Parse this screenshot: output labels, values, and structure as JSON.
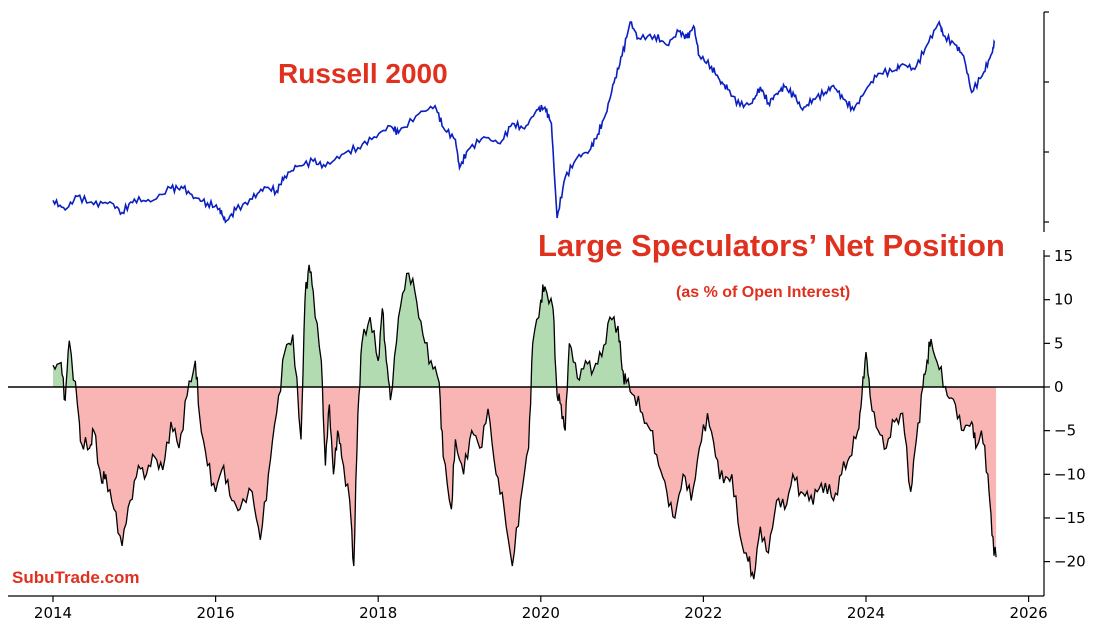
{
  "chart_data": [
    {
      "type": "line",
      "title": "Russell 2000",
      "x_unit": "year",
      "y_tick_labels": [],
      "xlim": [
        2014,
        2026
      ],
      "color": "#0a1fbf",
      "series": [
        {
          "values": [
            [
              2014.0,
              0.13
            ],
            [
              2014.15,
              0.06
            ],
            [
              2014.3,
              0.16
            ],
            [
              2014.5,
              0.1
            ],
            [
              2014.7,
              0.12
            ],
            [
              2014.85,
              0.04
            ],
            [
              2015.0,
              0.14
            ],
            [
              2015.2,
              0.12
            ],
            [
              2015.45,
              0.22
            ],
            [
              2015.6,
              0.22
            ],
            [
              2015.75,
              0.15
            ],
            [
              2015.9,
              0.11
            ],
            [
              2016.05,
              0.07
            ],
            [
              2016.12,
              -0.03
            ],
            [
              2016.25,
              0.06
            ],
            [
              2016.45,
              0.14
            ],
            [
              2016.6,
              0.23
            ],
            [
              2016.75,
              0.2
            ],
            [
              2016.85,
              0.31
            ],
            [
              2017.0,
              0.38
            ],
            [
              2017.2,
              0.42
            ],
            [
              2017.35,
              0.38
            ],
            [
              2017.55,
              0.47
            ],
            [
              2017.75,
              0.52
            ],
            [
              2017.95,
              0.6
            ],
            [
              2018.15,
              0.68
            ],
            [
              2018.25,
              0.63
            ],
            [
              2018.5,
              0.77
            ],
            [
              2018.7,
              0.83
            ],
            [
              2018.8,
              0.67
            ],
            [
              2018.95,
              0.58
            ],
            [
              2019.0,
              0.37
            ],
            [
              2019.1,
              0.5
            ],
            [
              2019.3,
              0.6
            ],
            [
              2019.5,
              0.55
            ],
            [
              2019.65,
              0.7
            ],
            [
              2019.8,
              0.66
            ],
            [
              2019.95,
              0.8
            ],
            [
              2020.05,
              0.82
            ],
            [
              2020.13,
              0.7
            ],
            [
              2020.2,
              0.0
            ],
            [
              2020.3,
              0.3
            ],
            [
              2020.45,
              0.45
            ],
            [
              2020.6,
              0.5
            ],
            [
              2020.7,
              0.62
            ],
            [
              2020.8,
              0.77
            ],
            [
              2020.9,
              1.0
            ],
            [
              2021.0,
              1.2
            ],
            [
              2021.1,
              1.45
            ],
            [
              2021.2,
              1.33
            ],
            [
              2021.4,
              1.35
            ],
            [
              2021.55,
              1.28
            ],
            [
              2021.7,
              1.38
            ],
            [
              2021.8,
              1.33
            ],
            [
              2021.88,
              1.42
            ],
            [
              2021.95,
              1.2
            ],
            [
              2022.1,
              1.12
            ],
            [
              2022.2,
              1.02
            ],
            [
              2022.3,
              0.95
            ],
            [
              2022.45,
              0.83
            ],
            [
              2022.6,
              0.85
            ],
            [
              2022.7,
              0.97
            ],
            [
              2022.8,
              0.85
            ],
            [
              2022.9,
              0.92
            ],
            [
              2023.0,
              0.97
            ],
            [
              2023.12,
              0.9
            ],
            [
              2023.22,
              0.8
            ],
            [
              2023.35,
              0.88
            ],
            [
              2023.5,
              0.93
            ],
            [
              2023.6,
              0.98
            ],
            [
              2023.72,
              0.88
            ],
            [
              2023.85,
              0.8
            ],
            [
              2024.0,
              0.95
            ],
            [
              2024.15,
              1.07
            ],
            [
              2024.35,
              1.09
            ],
            [
              2024.45,
              1.14
            ],
            [
              2024.6,
              1.1
            ],
            [
              2024.75,
              1.28
            ],
            [
              2024.9,
              1.45
            ],
            [
              2024.95,
              1.35
            ],
            [
              2025.1,
              1.28
            ],
            [
              2025.2,
              1.2
            ],
            [
              2025.3,
              0.93
            ],
            [
              2025.45,
              1.08
            ],
            [
              2025.55,
              1.22
            ],
            [
              2025.58,
              1.3
            ]
          ]
        }
      ]
    },
    {
      "type": "area",
      "title": "Large Speculators’ Net Position",
      "subtitle": "(as % of Open Interest)",
      "x_tick_labels": [
        "2014",
        "2016",
        "2018",
        "2020",
        "2022",
        "2024",
        "2026"
      ],
      "x_ticks": [
        2014,
        2016,
        2018,
        2020,
        2022,
        2024,
        2026
      ],
      "xlim": [
        2014,
        2026
      ],
      "y_ticks": [
        15,
        10,
        5,
        0,
        -5,
        -10,
        -15,
        -20
      ],
      "y_tick_labels": [
        "15",
        "10",
        "5",
        "0",
        "−5",
        "−10",
        "−15",
        "−20"
      ],
      "ylim": [
        -23.5,
        16
      ],
      "baseline": 0,
      "positive_fill": "#b2dbb2",
      "negative_fill": "#f9b4b4",
      "line_color": "#000000",
      "series": [
        {
          "values": [
            [
              2014.0,
              2.5
            ],
            [
              2014.1,
              2.8
            ],
            [
              2014.15,
              -1.5
            ],
            [
              2014.2,
              5.3
            ],
            [
              2014.3,
              -2.0
            ],
            [
              2014.35,
              -6.5
            ],
            [
              2014.45,
              -7.0
            ],
            [
              2014.5,
              -5.0
            ],
            [
              2014.6,
              -11.0
            ],
            [
              2014.65,
              -10.0
            ],
            [
              2014.75,
              -14.0
            ],
            [
              2014.85,
              -18.2
            ],
            [
              2014.95,
              -13.0
            ],
            [
              2015.05,
              -9.0
            ],
            [
              2015.15,
              -10.0
            ],
            [
              2015.25,
              -8.0
            ],
            [
              2015.35,
              -9.5
            ],
            [
              2015.45,
              -4.0
            ],
            [
              2015.55,
              -7.0
            ],
            [
              2015.65,
              -1.0
            ],
            [
              2015.75,
              3.0
            ],
            [
              2015.8,
              -3.0
            ],
            [
              2015.9,
              -9.0
            ],
            [
              2016.0,
              -12.0
            ],
            [
              2016.1,
              -9.0
            ],
            [
              2016.2,
              -13.0
            ],
            [
              2016.3,
              -14.0
            ],
            [
              2016.45,
              -12.0
            ],
            [
              2016.55,
              -17.5
            ],
            [
              2016.65,
              -10.0
            ],
            [
              2016.75,
              -3.0
            ],
            [
              2016.85,
              4.0
            ],
            [
              2016.95,
              6.0
            ],
            [
              2017.05,
              -6.0
            ],
            [
              2017.1,
              10.0
            ],
            [
              2017.15,
              14.0
            ],
            [
              2017.2,
              11.0
            ],
            [
              2017.3,
              3.0
            ],
            [
              2017.35,
              -9.0
            ],
            [
              2017.4,
              -2.0
            ],
            [
              2017.45,
              -10.0
            ],
            [
              2017.5,
              -5.0
            ],
            [
              2017.55,
              -8.0
            ],
            [
              2017.65,
              -13.0
            ],
            [
              2017.7,
              -20.5
            ],
            [
              2017.75,
              -3.0
            ],
            [
              2017.8,
              5.0
            ],
            [
              2017.9,
              8.0
            ],
            [
              2018.0,
              3.0
            ],
            [
              2018.05,
              9.0
            ],
            [
              2018.1,
              3.0
            ],
            [
              2018.15,
              -1.5
            ],
            [
              2018.25,
              8.0
            ],
            [
              2018.35,
              13.0
            ],
            [
              2018.45,
              11.0
            ],
            [
              2018.55,
              6.0
            ],
            [
              2018.65,
              3.0
            ],
            [
              2018.75,
              0.5
            ],
            [
              2018.8,
              -8.0
            ],
            [
              2018.9,
              -14.0
            ],
            [
              2018.95,
              -6.0
            ],
            [
              2019.05,
              -10.0
            ],
            [
              2019.15,
              -5.0
            ],
            [
              2019.25,
              -7.0
            ],
            [
              2019.35,
              -2.5
            ],
            [
              2019.45,
              -10.0
            ],
            [
              2019.55,
              -14.0
            ],
            [
              2019.65,
              -20.5
            ],
            [
              2019.75,
              -13.0
            ],
            [
              2019.85,
              -7.0
            ],
            [
              2019.9,
              5.0
            ],
            [
              2020.0,
              10.0
            ],
            [
              2020.05,
              11.5
            ],
            [
              2020.15,
              9.0
            ],
            [
              2020.2,
              -1.0
            ],
            [
              2020.25,
              -2.0
            ],
            [
              2020.3,
              -5.0
            ],
            [
              2020.35,
              5.0
            ],
            [
              2020.45,
              1.0
            ],
            [
              2020.55,
              3.0
            ],
            [
              2020.65,
              2.0
            ],
            [
              2020.75,
              3.5
            ],
            [
              2020.85,
              8.0
            ],
            [
              2020.95,
              7.0
            ],
            [
              2021.0,
              2.0
            ],
            [
              2021.05,
              0.5
            ],
            [
              2021.15,
              -1.0
            ],
            [
              2021.25,
              -3.0
            ],
            [
              2021.35,
              -5.0
            ],
            [
              2021.45,
              -9.0
            ],
            [
              2021.55,
              -12.0
            ],
            [
              2021.65,
              -15.0
            ],
            [
              2021.75,
              -10.0
            ],
            [
              2021.85,
              -13.0
            ],
            [
              2021.95,
              -7.0
            ],
            [
              2022.05,
              -3.0
            ],
            [
              2022.15,
              -8.0
            ],
            [
              2022.25,
              -11.0
            ],
            [
              2022.35,
              -10.0
            ],
            [
              2022.45,
              -17.0
            ],
            [
              2022.55,
              -20.0
            ],
            [
              2022.62,
              -22.0
            ],
            [
              2022.7,
              -16.0
            ],
            [
              2022.8,
              -19.0
            ],
            [
              2022.9,
              -13.0
            ],
            [
              2023.0,
              -14.0
            ],
            [
              2023.1,
              -10.0
            ],
            [
              2023.2,
              -12.0
            ],
            [
              2023.3,
              -13.0
            ],
            [
              2023.4,
              -12.0
            ],
            [
              2023.5,
              -11.0
            ],
            [
              2023.6,
              -13.0
            ],
            [
              2023.7,
              -10.0
            ],
            [
              2023.8,
              -8.0
            ],
            [
              2023.9,
              -5.0
            ],
            [
              2023.95,
              -1.0
            ],
            [
              2024.0,
              4.0
            ],
            [
              2024.05,
              -1.0
            ],
            [
              2024.15,
              -5.0
            ],
            [
              2024.25,
              -7.0
            ],
            [
              2024.35,
              -4.0
            ],
            [
              2024.45,
              -3.0
            ],
            [
              2024.55,
              -12.0
            ],
            [
              2024.62,
              -6.0
            ],
            [
              2024.7,
              0.0
            ],
            [
              2024.75,
              3.0
            ],
            [
              2024.8,
              5.5
            ],
            [
              2024.9,
              2.0
            ],
            [
              2025.0,
              -1.0
            ],
            [
              2025.1,
              -2.0
            ],
            [
              2025.2,
              -5.0
            ],
            [
              2025.3,
              -4.0
            ],
            [
              2025.35,
              -7.0
            ],
            [
              2025.42,
              -5.0
            ],
            [
              2025.5,
              -10.0
            ],
            [
              2025.55,
              -17.0
            ],
            [
              2025.6,
              -19.5
            ]
          ]
        }
      ]
    }
  ],
  "labels": {
    "top_title": "Russell 2000",
    "bottom_title": "Large Speculators’ Net Position",
    "bottom_subtitle": "(as % of Open Interest)",
    "watermark": "SubuTrade.com"
  }
}
